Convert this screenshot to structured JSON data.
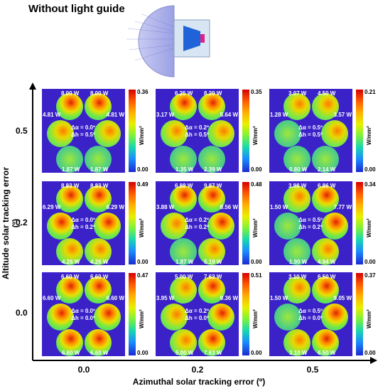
{
  "title": "Without light guide",
  "ylabel": "Altitude solar tracking error (º)",
  "xlabel": "Azimuthal solar tracking error (º)",
  "yticks": [
    "0.5",
    "0.2",
    "0.0"
  ],
  "xticks": [
    "0.0",
    "0.2",
    "0.5"
  ],
  "colorbar_unit": "W/mm²",
  "colorbar_min": "0.00",
  "panels": [
    {
      "max": "0.36",
      "da": "Δα = 0.0º",
      "dh": "Δh = 0.5º",
      "w": [
        "8.00 W",
        "8.00 W",
        "4.81 W",
        "4.81 W",
        "1.87 W",
        "1.87 W"
      ]
    },
    {
      "max": "0.35",
      "da": "Δα = 0.2º",
      "dh": "Δh = 0.5º",
      "w": [
        "6.25 W",
        "8.29 W",
        "3.17 W",
        "5.64 W",
        "1.35 W",
        "2.39 W"
      ]
    },
    {
      "max": "0.21",
      "da": "Δα = 0.5º",
      "dh": "Δh = 0.5º",
      "w": [
        "3.07 W",
        "4.50 W",
        "1.28 W",
        "3.57 W",
        "0.80 W",
        "2.14 W"
      ]
    },
    {
      "max": "0.49",
      "da": "Δα = 0.0º",
      "dh": "Δh = 0.2º",
      "w": [
        "8.83 W",
        "8.83 W",
        "6.29 W",
        "6.29 W",
        "4.26 W",
        "4.26 W"
      ]
    },
    {
      "max": "0.48",
      "da": "Δα = 0.2º",
      "dh": "Δh = 0.2º",
      "w": [
        "6.88 W",
        "9.87 W",
        "3.88 W",
        "8.56 W",
        "1.87 W",
        "5.19 W"
      ]
    },
    {
      "max": "0.34",
      "da": "Δα = 0.5º",
      "dh": "Δh = 0.2º",
      "w": [
        "3.98 W",
        "6.86 W",
        "1.50 W",
        "7.77 W",
        "1.90 W",
        "4.94 W"
      ]
    },
    {
      "max": "0.47",
      "da": "Δα = 0.0º",
      "dh": "Δh = 0.0º",
      "w": [
        "6.60 W",
        "6.60 W",
        "6.60 W",
        "6.60 W",
        "6.60 W",
        "6.60 W"
      ]
    },
    {
      "max": "0.51",
      "da": "Δα = 0.2º",
      "dh": "Δh = 0.0º",
      "w": [
        "5.00 W",
        "7.63 W",
        "3.95 W",
        "9.36 W",
        "5.00 W",
        "7.63 W"
      ]
    },
    {
      "max": "0.37",
      "da": "Δα = 0.5º",
      "dh": "Δh = 0.0º",
      "w": [
        "3.10 W",
        "6.50 W",
        "1.50 W",
        "9.05 W",
        "3.10 W",
        "6.50 W"
      ]
    }
  ]
}
